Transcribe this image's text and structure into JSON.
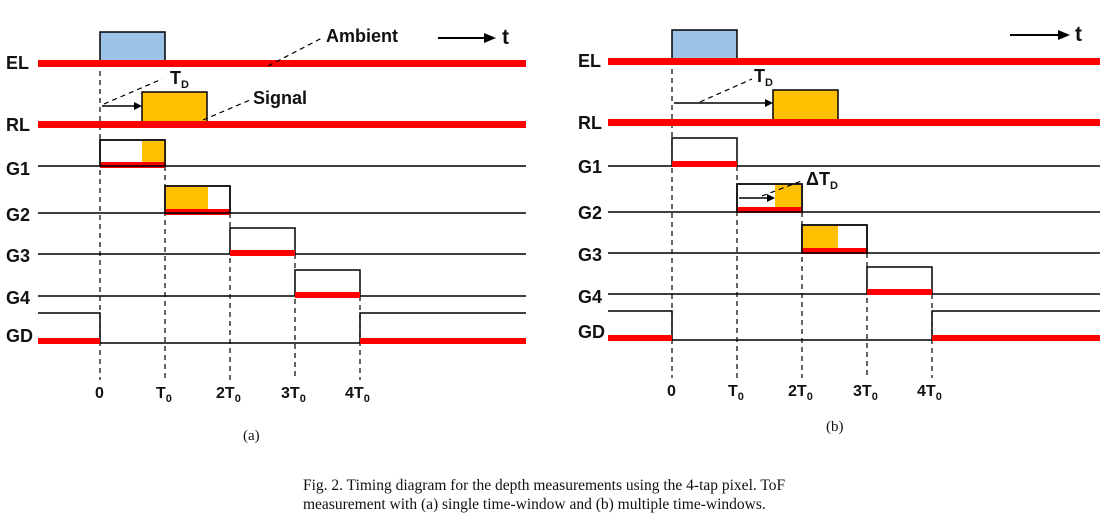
{
  "colors": {
    "red": "#ff0000",
    "signal": "#ffc000",
    "emitted": "#9dc3e6",
    "line": "#000000"
  },
  "panels": [
    {
      "label": "(a)",
      "signal_labels": [
        "EL",
        "RL",
        "G1",
        "G2",
        "G3",
        "G4",
        "GD"
      ],
      "annotations": {
        "ambient": "Ambient",
        "signal": "Signal",
        "time": "t",
        "delay": "T",
        "delay_sub": "D"
      },
      "ticks": [
        {
          "pre": "",
          "main": "0",
          "sub": ""
        },
        {
          "pre": "",
          "main": "T",
          "sub": "0"
        },
        {
          "pre": "2",
          "main": "T",
          "sub": "0"
        },
        {
          "pre": "3",
          "main": "T",
          "sub": "0"
        },
        {
          "pre": "4",
          "main": "T",
          "sub": "0"
        }
      ]
    },
    {
      "label": "(b)",
      "signal_labels": [
        "EL",
        "RL",
        "G1",
        "G2",
        "G3",
        "G4",
        "GD"
      ],
      "annotations": {
        "time": "t",
        "delay": "T",
        "delay_sub": "D",
        "delta_delay": "ΔT",
        "delta_delay_sub": "D"
      },
      "ticks": [
        {
          "pre": "",
          "main": "0",
          "sub": ""
        },
        {
          "pre": "",
          "main": "T",
          "sub": "0"
        },
        {
          "pre": "2",
          "main": "T",
          "sub": "0"
        },
        {
          "pre": "3",
          "main": "T",
          "sub": "0"
        },
        {
          "pre": "4",
          "main": "T",
          "sub": "0"
        }
      ]
    }
  ],
  "caption": {
    "line1": "Fig. 2.   Timing diagram for the depth measurements using the 4-tap pixel. ToF",
    "line2": "measurement with (a) single time-window and (b) multiple time-windows."
  }
}
